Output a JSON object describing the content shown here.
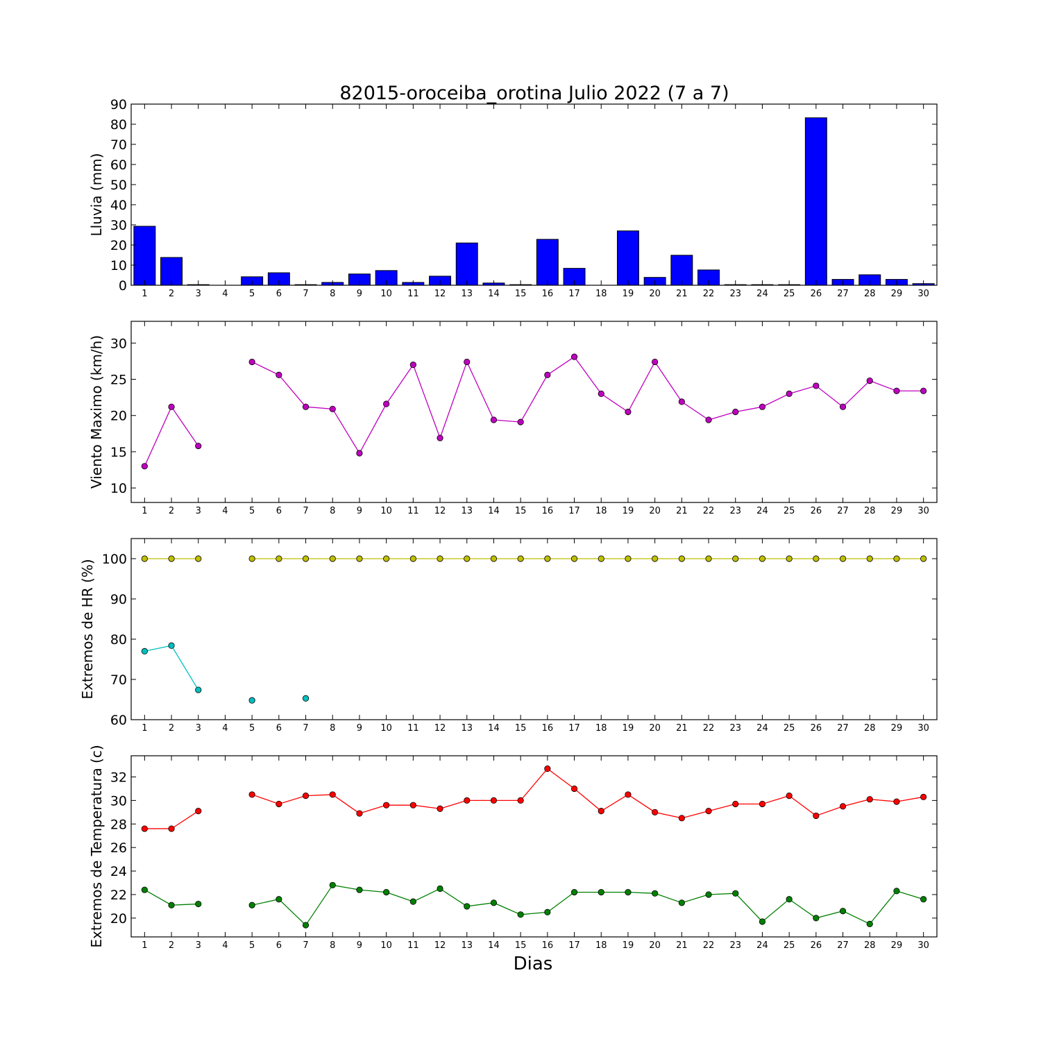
{
  "title": "82015-oroceiba_orotina Julio 2022  (7 a 7)",
  "xlabel": "Dias",
  "chart_data": [
    {
      "type": "bar",
      "ylabel": "Lluvia (mm)",
      "ylim": [
        0,
        90
      ],
      "yticks": [
        0,
        10,
        20,
        30,
        40,
        50,
        60,
        70,
        80,
        90
      ],
      "xlim": [
        0.5,
        30.5
      ],
      "categories": [
        1,
        2,
        3,
        4,
        5,
        6,
        7,
        8,
        9,
        10,
        11,
        12,
        13,
        14,
        15,
        16,
        17,
        18,
        19,
        20,
        21,
        22,
        23,
        24,
        25,
        26,
        27,
        28,
        29,
        30
      ],
      "series": [
        {
          "color": "#0000ff",
          "values": [
            29.3,
            13.8,
            0.3,
            0,
            4.2,
            6.2,
            0.3,
            1.4,
            5.6,
            7.3,
            1.4,
            4.5,
            21.0,
            1.1,
            0.3,
            22.8,
            8.4,
            0,
            27.0,
            3.9,
            14.9,
            7.6,
            0.3,
            0.3,
            0.3,
            83.2,
            2.9,
            5.2,
            2.9,
            0.8
          ]
        }
      ]
    },
    {
      "type": "line",
      "ylabel": "Viento Maximo (km/h)",
      "ylim": [
        8,
        33
      ],
      "yticks": [
        10,
        15,
        20,
        25,
        30
      ],
      "xlim": [
        0.5,
        30.5
      ],
      "x": [
        1,
        2,
        3,
        4,
        5,
        6,
        7,
        8,
        9,
        10,
        11,
        12,
        13,
        14,
        15,
        16,
        17,
        18,
        19,
        20,
        21,
        22,
        23,
        24,
        25,
        26,
        27,
        28,
        29,
        30
      ],
      "series": [
        {
          "color": "#bf00bf",
          "values": [
            13.0,
            21.2,
            15.8,
            null,
            27.4,
            25.6,
            21.2,
            20.9,
            14.8,
            21.6,
            27.0,
            16.9,
            27.4,
            19.4,
            19.1,
            25.6,
            28.1,
            23.0,
            20.5,
            27.4,
            21.9,
            19.4,
            20.5,
            21.2,
            23.0,
            24.1,
            21.2,
            24.8,
            23.4,
            23.4
          ]
        }
      ]
    },
    {
      "type": "line",
      "ylabel": "Extremos de HR (%)",
      "ylim": [
        60,
        105
      ],
      "yticks": [
        60,
        70,
        80,
        90,
        100
      ],
      "xlim": [
        0.5,
        30.5
      ],
      "x": [
        1,
        2,
        3,
        4,
        5,
        6,
        7,
        8,
        9,
        10,
        11,
        12,
        13,
        14,
        15,
        16,
        17,
        18,
        19,
        20,
        21,
        22,
        23,
        24,
        25,
        26,
        27,
        28,
        29,
        30
      ],
      "series": [
        {
          "color": "#bfbf00",
          "values": [
            100,
            100,
            100,
            null,
            100,
            100,
            100,
            100,
            100,
            100,
            100,
            100,
            100,
            100,
            100,
            100,
            100,
            100,
            100,
            100,
            100,
            100,
            100,
            100,
            100,
            100,
            100,
            100,
            100,
            100
          ]
        },
        {
          "color": "#00bfbf",
          "values": [
            77.0,
            78.4,
            67.4,
            null,
            64.8,
            null,
            65.3,
            null,
            null,
            null,
            null,
            null,
            null,
            null,
            null,
            null,
            null,
            null,
            null,
            null,
            null,
            null,
            null,
            null,
            null,
            null,
            null,
            null,
            null,
            null
          ]
        }
      ]
    },
    {
      "type": "line",
      "ylabel": "Extremos de Temperatura (c)",
      "ylim": [
        18.4,
        33.8
      ],
      "yticks": [
        20,
        22,
        24,
        26,
        28,
        30,
        32
      ],
      "xlim": [
        0.5,
        30.5
      ],
      "x": [
        1,
        2,
        3,
        4,
        5,
        6,
        7,
        8,
        9,
        10,
        11,
        12,
        13,
        14,
        15,
        16,
        17,
        18,
        19,
        20,
        21,
        22,
        23,
        24,
        25,
        26,
        27,
        28,
        29,
        30
      ],
      "series": [
        {
          "color": "#ff0000",
          "values": [
            27.6,
            27.6,
            29.1,
            null,
            30.5,
            29.7,
            30.4,
            30.5,
            28.9,
            29.6,
            29.6,
            29.3,
            30.0,
            30.0,
            30.0,
            32.7,
            31.0,
            29.1,
            30.5,
            29.0,
            28.5,
            29.1,
            29.7,
            29.7,
            30.4,
            28.7,
            29.5,
            30.1,
            29.9,
            30.3
          ]
        },
        {
          "color": "#008000",
          "values": [
            22.4,
            21.1,
            21.2,
            null,
            21.1,
            21.6,
            19.4,
            22.8,
            22.4,
            22.2,
            21.4,
            22.5,
            21.0,
            21.3,
            20.3,
            20.5,
            22.2,
            22.2,
            22.2,
            22.1,
            21.3,
            22.0,
            22.1,
            19.7,
            21.6,
            20.0,
            20.6,
            19.5,
            22.3,
            21.6
          ]
        }
      ]
    }
  ]
}
